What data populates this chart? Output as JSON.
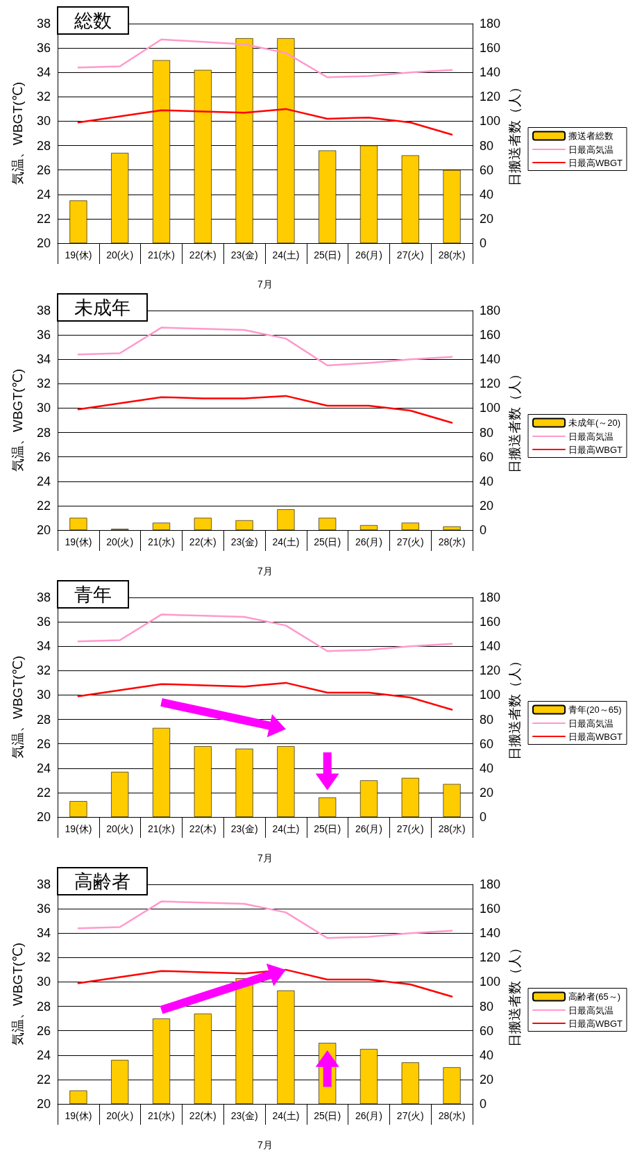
{
  "chart_data": [
    {
      "type": "bar",
      "title": "総数",
      "xlabel": "7月",
      "ylabel": "気温、WBGT(℃)",
      "y2label": "日搬送者数（人）",
      "categories": [
        "19(休)",
        "20(火)",
        "21(水)",
        "22(木)",
        "23(金)",
        "24(土)",
        "25(日)",
        "26(月)",
        "27(火)",
        "28(水)"
      ],
      "ylim": [
        20,
        38
      ],
      "yticks": [
        20,
        22,
        24,
        26,
        28,
        30,
        32,
        34,
        36,
        38
      ],
      "y2lim": [
        0,
        180
      ],
      "y2ticks": [
        0,
        20,
        40,
        60,
        80,
        100,
        120,
        140,
        160,
        180
      ],
      "grid": "y",
      "legend": "right",
      "marker": "none",
      "series": [
        {
          "name": "搬送者総数",
          "axis": "y2",
          "color": "#ffcc00",
          "values": [
            35,
            74,
            150,
            142,
            168,
            168,
            76,
            80,
            72,
            60
          ]
        },
        {
          "name": "日最高気温",
          "type": "line",
          "color": "#ff99cc",
          "values": [
            34.4,
            34.5,
            36.7,
            36.5,
            36.3,
            35.6,
            33.6,
            33.7,
            34.0,
            34.2
          ]
        },
        {
          "name": "日最高WBGT",
          "type": "line",
          "color": "#ff0000",
          "values": [
            29.9,
            30.4,
            30.9,
            30.8,
            30.7,
            31.0,
            30.2,
            30.3,
            29.9,
            28.9
          ]
        }
      ]
    },
    {
      "type": "bar",
      "title": "未成年",
      "xlabel": "7月",
      "ylabel": "気温、WBGT(℃)",
      "y2label": "日搬送者数（人）",
      "categories": [
        "19(休)",
        "20(火)",
        "21(水)",
        "22(木)",
        "23(金)",
        "24(土)",
        "25(日)",
        "26(月)",
        "27(火)",
        "28(水)"
      ],
      "ylim": [
        20,
        38
      ],
      "yticks": [
        20,
        22,
        24,
        26,
        28,
        30,
        32,
        34,
        36,
        38
      ],
      "y2lim": [
        0,
        180
      ],
      "y2ticks": [
        0,
        20,
        40,
        60,
        80,
        100,
        120,
        140,
        160,
        180
      ],
      "grid": "y",
      "legend": "right",
      "marker": "none",
      "series": [
        {
          "name": "未成年(～20)",
          "axis": "y2",
          "color": "#ffcc00",
          "values": [
            10,
            1,
            6,
            10,
            8,
            17,
            10,
            4,
            6,
            3
          ]
        },
        {
          "name": "日最高気温",
          "type": "line",
          "color": "#ff99cc",
          "values": [
            34.4,
            34.5,
            36.6,
            36.5,
            36.4,
            35.7,
            33.5,
            33.7,
            34.0,
            34.2
          ]
        },
        {
          "name": "日最高WBGT",
          "type": "line",
          "color": "#ff0000",
          "values": [
            29.9,
            30.4,
            30.9,
            30.8,
            30.8,
            31.0,
            30.2,
            30.2,
            29.8,
            28.8
          ]
        }
      ]
    },
    {
      "type": "bar",
      "title": "青年",
      "xlabel": "7月",
      "ylabel": "気温、WBGT(℃)",
      "y2label": "日搬送者数（人）",
      "categories": [
        "19(休)",
        "20(火)",
        "21(水)",
        "22(木)",
        "23(金)",
        "24(土)",
        "25(日)",
        "26(月)",
        "27(火)",
        "28(水)"
      ],
      "ylim": [
        20,
        38
      ],
      "yticks": [
        20,
        22,
        24,
        26,
        28,
        30,
        32,
        34,
        36,
        38
      ],
      "y2lim": [
        0,
        180
      ],
      "y2ticks": [
        0,
        20,
        40,
        60,
        80,
        100,
        120,
        140,
        160,
        180
      ],
      "grid": "y",
      "legend": "right",
      "marker": "none",
      "series": [
        {
          "name": "青年(20～65)",
          "axis": "y2",
          "color": "#ffcc00",
          "values": [
            13,
            37,
            73,
            58,
            56,
            58,
            16,
            30,
            32,
            27
          ]
        },
        {
          "name": "日最高気温",
          "type": "line",
          "color": "#ff99cc",
          "values": [
            34.4,
            34.5,
            36.6,
            36.5,
            36.4,
            35.7,
            33.6,
            33.7,
            34.0,
            34.2
          ]
        },
        {
          "name": "日最高WBGT",
          "type": "line",
          "color": "#ff0000",
          "values": [
            29.9,
            30.4,
            30.9,
            30.8,
            30.7,
            31.0,
            30.2,
            30.2,
            29.8,
            28.8
          ]
        }
      ]
    },
    {
      "type": "bar",
      "title": "高齢者",
      "xlabel": "7月",
      "ylabel": "気温、WBGT(℃)",
      "y2label": "日搬送者数（人）",
      "categories": [
        "19(休)",
        "20(火)",
        "21(水)",
        "22(木)",
        "23(金)",
        "24(土)",
        "25(日)",
        "26(月)",
        "27(火)",
        "28(水)"
      ],
      "ylim": [
        20,
        38
      ],
      "yticks": [
        20,
        22,
        24,
        26,
        28,
        30,
        32,
        34,
        36,
        38
      ],
      "y2lim": [
        0,
        180
      ],
      "y2ticks": [
        0,
        20,
        40,
        60,
        80,
        100,
        120,
        140,
        160,
        180
      ],
      "grid": "y",
      "legend": "right",
      "marker": "none",
      "series": [
        {
          "name": "高齢者(65～)",
          "axis": "y2",
          "color": "#ffcc00",
          "values": [
            11,
            36,
            70,
            74,
            103,
            93,
            50,
            45,
            34,
            30
          ]
        },
        {
          "name": "日最高気温",
          "type": "line",
          "color": "#ff99cc",
          "values": [
            34.4,
            34.5,
            36.6,
            36.5,
            36.4,
            35.7,
            33.6,
            33.7,
            34.0,
            34.2
          ]
        },
        {
          "name": "日最高WBGT",
          "type": "line",
          "color": "#ff0000",
          "values": [
            29.9,
            30.4,
            30.9,
            30.8,
            30.7,
            31.0,
            30.2,
            30.2,
            29.8,
            28.8
          ]
        }
      ]
    }
  ]
}
